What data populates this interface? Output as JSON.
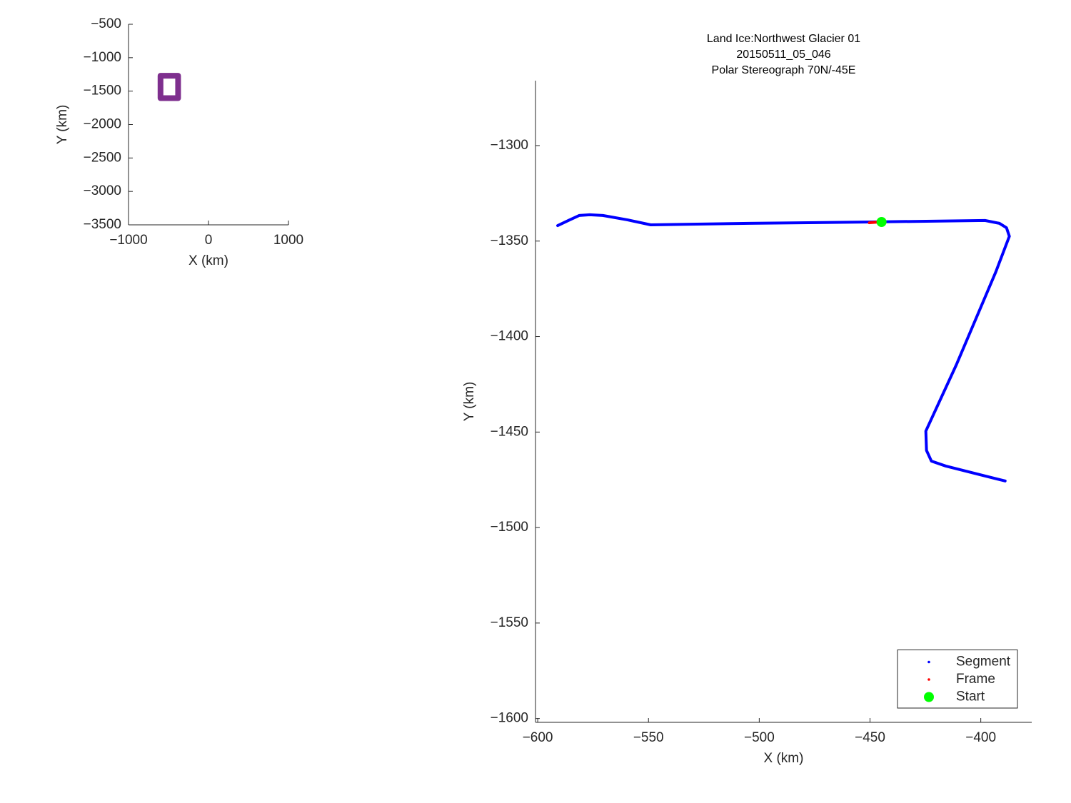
{
  "chart_data": [
    {
      "type": "line",
      "xlabel": "X (km)",
      "ylabel": "Y (km)",
      "xlim": [
        -1000,
        1000
      ],
      "ylim": [
        -3500,
        -500
      ],
      "xticks": [
        {
          "value": -1000,
          "label": "−1000"
        },
        0,
        1000
      ],
      "yticks": [
        {
          "value": -500,
          "label": "−500"
        },
        {
          "value": -1000,
          "label": "−1000"
        },
        {
          "value": -1500,
          "label": "−1500"
        },
        {
          "value": -2000,
          "label": "−2000"
        },
        {
          "value": -2500,
          "label": "−2500"
        },
        {
          "value": -3000,
          "label": "−3000"
        },
        {
          "value": -3500,
          "label": "−3500"
        }
      ],
      "series": [
        {
          "color": "#7e2f8e",
          "line_width": 8,
          "x": [
            -600,
            -380,
            -380,
            -600,
            -600
          ],
          "y": [
            -1270,
            -1270,
            -1605,
            -1605,
            -1270
          ]
        }
      ]
    },
    {
      "type": "line",
      "title": [
        "Land Ice:Northwest Glacier 01",
        "20150511_05_046",
        "Polar Stereograph 70N/-45E"
      ],
      "xlabel": "X (km)",
      "ylabel": "Y (km)",
      "xlim": [
        -601,
        -377
      ],
      "ylim": [
        -1602,
        -1266
      ],
      "xticks": [
        {
          "value": -600,
          "label": "−600"
        },
        {
          "value": -550,
          "label": "−550"
        },
        {
          "value": -500,
          "label": "−500"
        },
        {
          "value": -450,
          "label": "−450"
        },
        {
          "value": -400,
          "label": "−400"
        }
      ],
      "yticks": [
        {
          "value": -1300,
          "label": "−1300"
        },
        {
          "value": -1350,
          "label": "−1350"
        },
        {
          "value": -1400,
          "label": "−1400"
        },
        {
          "value": -1450,
          "label": "−1450"
        },
        {
          "value": -1500,
          "label": "−1500"
        },
        {
          "value": -1550,
          "label": "−1550"
        },
        {
          "value": -1600,
          "label": "−1600"
        }
      ],
      "legend": "southeast",
      "series": [
        {
          "name": "Segment",
          "color": "#0000ff",
          "line_width": 4,
          "x": [
            -591,
            -586.1,
            -581.3,
            -576.5,
            -570.6,
            -559.4,
            -549,
            -504.5,
            -449.7,
            -398.1,
            -391.6,
            -388.4,
            -387.1,
            -393.2,
            -411,
            -424.8,
            -424.5,
            -422.3,
            -415.8,
            -398.1,
            -389
          ],
          "y": [
            -1341.9,
            -1339.2,
            -1336.6,
            -1336.2,
            -1336.6,
            -1338.9,
            -1341.5,
            -1340.7,
            -1340,
            -1339.2,
            -1340.7,
            -1343,
            -1347.5,
            -1366.1,
            -1414.7,
            -1449.5,
            -1459.6,
            -1465.2,
            -1467.8,
            -1473,
            -1475.6
          ]
        },
        {
          "name": "Frame",
          "color": "#ff0000",
          "line_width": 4,
          "x": [
            -450.3,
            -445.8
          ],
          "y": [
            -1340.4,
            -1340
          ]
        },
        {
          "name": "Start",
          "color": "#00ff00",
          "marker": "filled",
          "x": [
            -444.8
          ],
          "y": [
            -1340
          ]
        }
      ]
    }
  ]
}
